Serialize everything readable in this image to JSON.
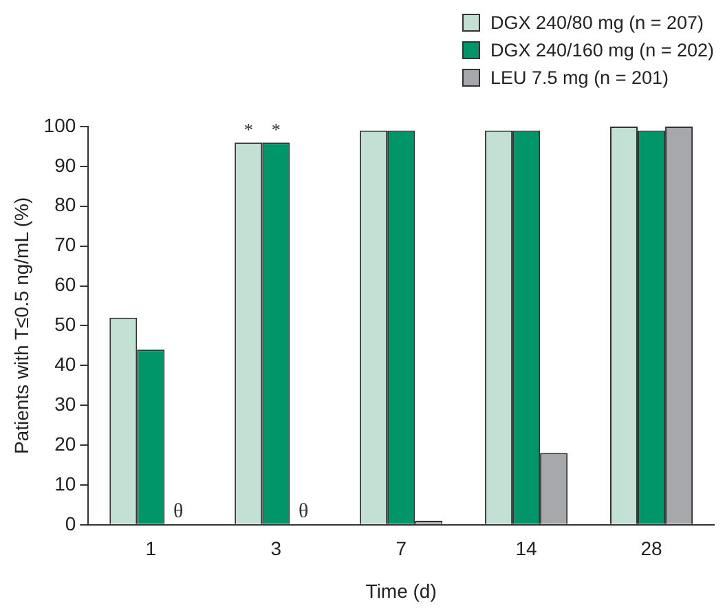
{
  "chart_data": {
    "type": "bar",
    "xlabel": "Time (d)",
    "ylabel": "Patients with T≤0.5 ng/mL (%)",
    "categories": [
      "1",
      "3",
      "7",
      "14",
      "28"
    ],
    "series": [
      {
        "name": "DGX 240/80 mg (n = 207)",
        "color": "#c2e0d3",
        "values": [
          52,
          96,
          99,
          99,
          100
        ]
      },
      {
        "name": "DGX 240/160 mg (n = 202)",
        "color": "#009669",
        "values": [
          44,
          96,
          99,
          99,
          99
        ]
      },
      {
        "name": "LEU 7.5 mg (n = 201)",
        "color": "#a7a8ab",
        "values": [
          0,
          0,
          1,
          18,
          100
        ]
      }
    ],
    "ylim": [
      0,
      100
    ],
    "yticks": [
      0,
      10,
      20,
      30,
      40,
      50,
      60,
      70,
      80,
      90,
      100
    ],
    "grid": false,
    "legend": "top right",
    "annotations": [
      {
        "text": "*",
        "x": "3",
        "y": 96
      },
      {
        "text": "*",
        "x": "3",
        "y": 96
      },
      {
        "text": "θ",
        "x": "1",
        "y": 0
      },
      {
        "text": "θ",
        "x": "3",
        "y": 0
      }
    ]
  }
}
